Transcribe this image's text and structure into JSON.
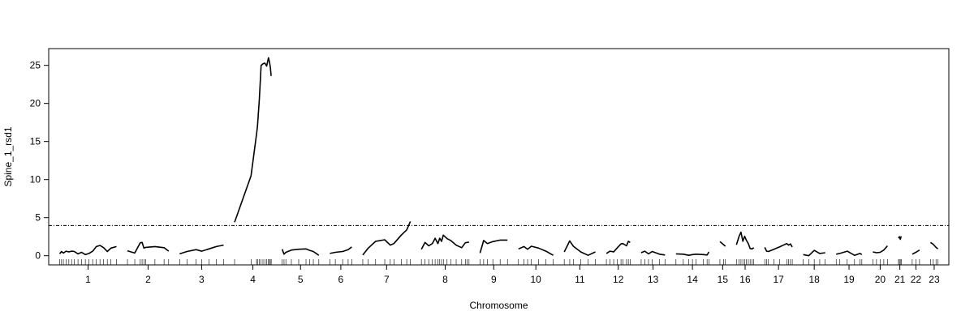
{
  "chart_data": {
    "type": "line",
    "title": "",
    "xlabel": "Chromosome",
    "ylabel": "Spine_1_rsd1",
    "ylim": [
      -1.2,
      27.2
    ],
    "yticks": [
      0,
      5,
      10,
      15,
      20,
      25
    ],
    "threshold": 3.97,
    "grid": false,
    "legend": "none",
    "line_color": "#000000",
    "chromosomes": [
      {
        "label": "1",
        "pos": [
          0,
          2,
          4,
          7,
          10,
          13,
          16,
          20,
          24,
          28,
          32,
          36,
          40,
          44,
          48,
          52,
          56,
          62
        ],
        "lod": [
          0.25,
          0.55,
          0.35,
          0.6,
          0.5,
          0.6,
          0.55,
          0.25,
          0.45,
          0.15,
          0.3,
          0.6,
          1.2,
          1.35,
          1.05,
          0.55,
          1.0,
          1.2
        ]
      },
      {
        "label": "2",
        "pos": [
          0,
          8,
          14,
          16,
          18,
          20,
          30,
          40,
          45
        ],
        "lod": [
          0.65,
          0.35,
          1.7,
          1.75,
          1.0,
          1.1,
          1.2,
          1.05,
          0.6
        ]
      },
      {
        "label": "3",
        "pos": [
          0,
          8,
          18,
          24,
          32,
          40,
          48
        ],
        "lod": [
          0.25,
          0.55,
          0.8,
          0.6,
          0.9,
          1.2,
          1.4
        ]
      },
      {
        "label": "4",
        "pos": [
          0,
          18,
          24,
          25,
          27,
          29,
          31,
          33,
          35,
          37,
          38,
          39,
          40
        ],
        "lod": [
          4.4,
          10.5,
          16.0,
          17.0,
          20.5,
          25.0,
          25.2,
          25.3,
          24.9,
          26.0,
          25.5,
          24.8,
          23.6
        ]
      },
      {
        "label": "5",
        "pos": [
          0,
          2,
          4,
          10,
          18,
          26,
          30,
          34,
          40
        ],
        "lod": [
          0.85,
          0.2,
          0.45,
          0.75,
          0.85,
          0.9,
          0.7,
          0.55,
          0.05
        ]
      },
      {
        "label": "6",
        "pos": [
          0,
          6,
          14,
          20,
          24
        ],
        "lod": [
          0.3,
          0.45,
          0.55,
          0.8,
          1.15
        ]
      },
      {
        "label": "7",
        "pos": [
          0,
          6,
          14,
          24,
          30,
          34,
          42,
          48,
          52
        ],
        "lod": [
          0.1,
          1.0,
          1.9,
          2.1,
          1.4,
          1.6,
          2.7,
          3.4,
          4.5
        ]
      },
      {
        "label": "8",
        "pos": [
          0,
          4,
          8,
          12,
          15,
          18,
          20,
          22,
          24,
          28,
          32,
          38,
          44,
          48,
          50,
          52
        ],
        "lod": [
          0.85,
          1.75,
          1.3,
          1.6,
          2.3,
          1.6,
          2.3,
          1.9,
          2.7,
          2.25,
          2.0,
          1.4,
          1.05,
          1.7,
          1.75,
          1.8
        ]
      },
      {
        "label": "9",
        "pos": [
          0,
          4,
          8,
          14,
          22,
          30
        ],
        "lod": [
          0.35,
          2.0,
          1.6,
          1.85,
          2.05,
          2.05
        ]
      },
      {
        "label": "10",
        "pos": [
          0,
          6,
          10,
          14,
          22,
          30,
          38
        ],
        "lod": [
          0.9,
          1.2,
          0.85,
          1.25,
          1.0,
          0.6,
          0.05
        ]
      },
      {
        "label": "11",
        "pos": [
          0,
          6,
          10,
          18,
          26,
          34
        ],
        "lod": [
          0.5,
          1.95,
          1.25,
          0.5,
          0.05,
          0.5
        ]
      },
      {
        "label": "12",
        "pos": [
          0,
          4,
          8,
          12,
          16,
          18,
          22,
          24,
          26
        ],
        "lod": [
          0.3,
          0.6,
          0.5,
          1.05,
          1.55,
          1.6,
          1.3,
          1.9,
          1.75
        ]
      },
      {
        "label": "13",
        "pos": [
          0,
          4,
          8,
          12,
          20,
          26
        ],
        "lod": [
          0.4,
          0.6,
          0.25,
          0.55,
          0.2,
          0.1
        ]
      },
      {
        "label": "14",
        "pos": [
          0,
          8,
          14,
          18,
          22,
          30,
          34,
          36
        ],
        "lod": [
          0.25,
          0.2,
          0.05,
          0.15,
          0.2,
          0.15,
          0.1,
          0.5
        ]
      },
      {
        "label": "15",
        "pos": [
          0,
          4,
          6
        ],
        "lod": [
          1.85,
          1.45,
          1.25
        ]
      },
      {
        "label": "16",
        "pos": [
          0,
          3,
          5,
          7,
          9,
          11,
          13,
          15,
          17,
          19
        ],
        "lod": [
          1.45,
          2.55,
          3.1,
          1.9,
          2.55,
          2.0,
          1.6,
          0.95,
          0.9,
          1.05
        ]
      },
      {
        "label": "17",
        "pos": [
          0,
          2,
          4,
          10,
          16,
          24,
          26,
          28,
          30
        ],
        "lod": [
          1.1,
          0.6,
          0.55,
          0.85,
          1.15,
          1.6,
          1.4,
          1.55,
          1.15
        ]
      },
      {
        "label": "18",
        "pos": [
          0,
          6,
          12,
          18,
          24
        ],
        "lod": [
          0.15,
          0.0,
          0.7,
          0.3,
          0.4
        ]
      },
      {
        "label": "19",
        "pos": [
          0,
          4,
          12,
          20,
          26,
          28
        ],
        "lod": [
          0.2,
          0.3,
          0.6,
          0.05,
          0.3,
          0.15
        ]
      },
      {
        "label": "20",
        "pos": [
          0,
          4,
          8,
          12,
          16
        ],
        "lod": [
          0.5,
          0.4,
          0.45,
          0.75,
          1.3
        ]
      },
      {
        "label": "21",
        "pos": [
          0,
          1,
          2,
          3
        ],
        "lod": [
          2.3,
          2.5,
          2.15,
          2.55
        ]
      },
      {
        "label": "22",
        "pos": [
          0,
          4,
          8
        ],
        "lod": [
          0.2,
          0.45,
          0.75
        ]
      },
      {
        "label": "23",
        "pos": [
          0,
          3,
          6,
          8
        ],
        "lod": [
          1.75,
          1.5,
          1.1,
          0.9
        ]
      }
    ]
  }
}
